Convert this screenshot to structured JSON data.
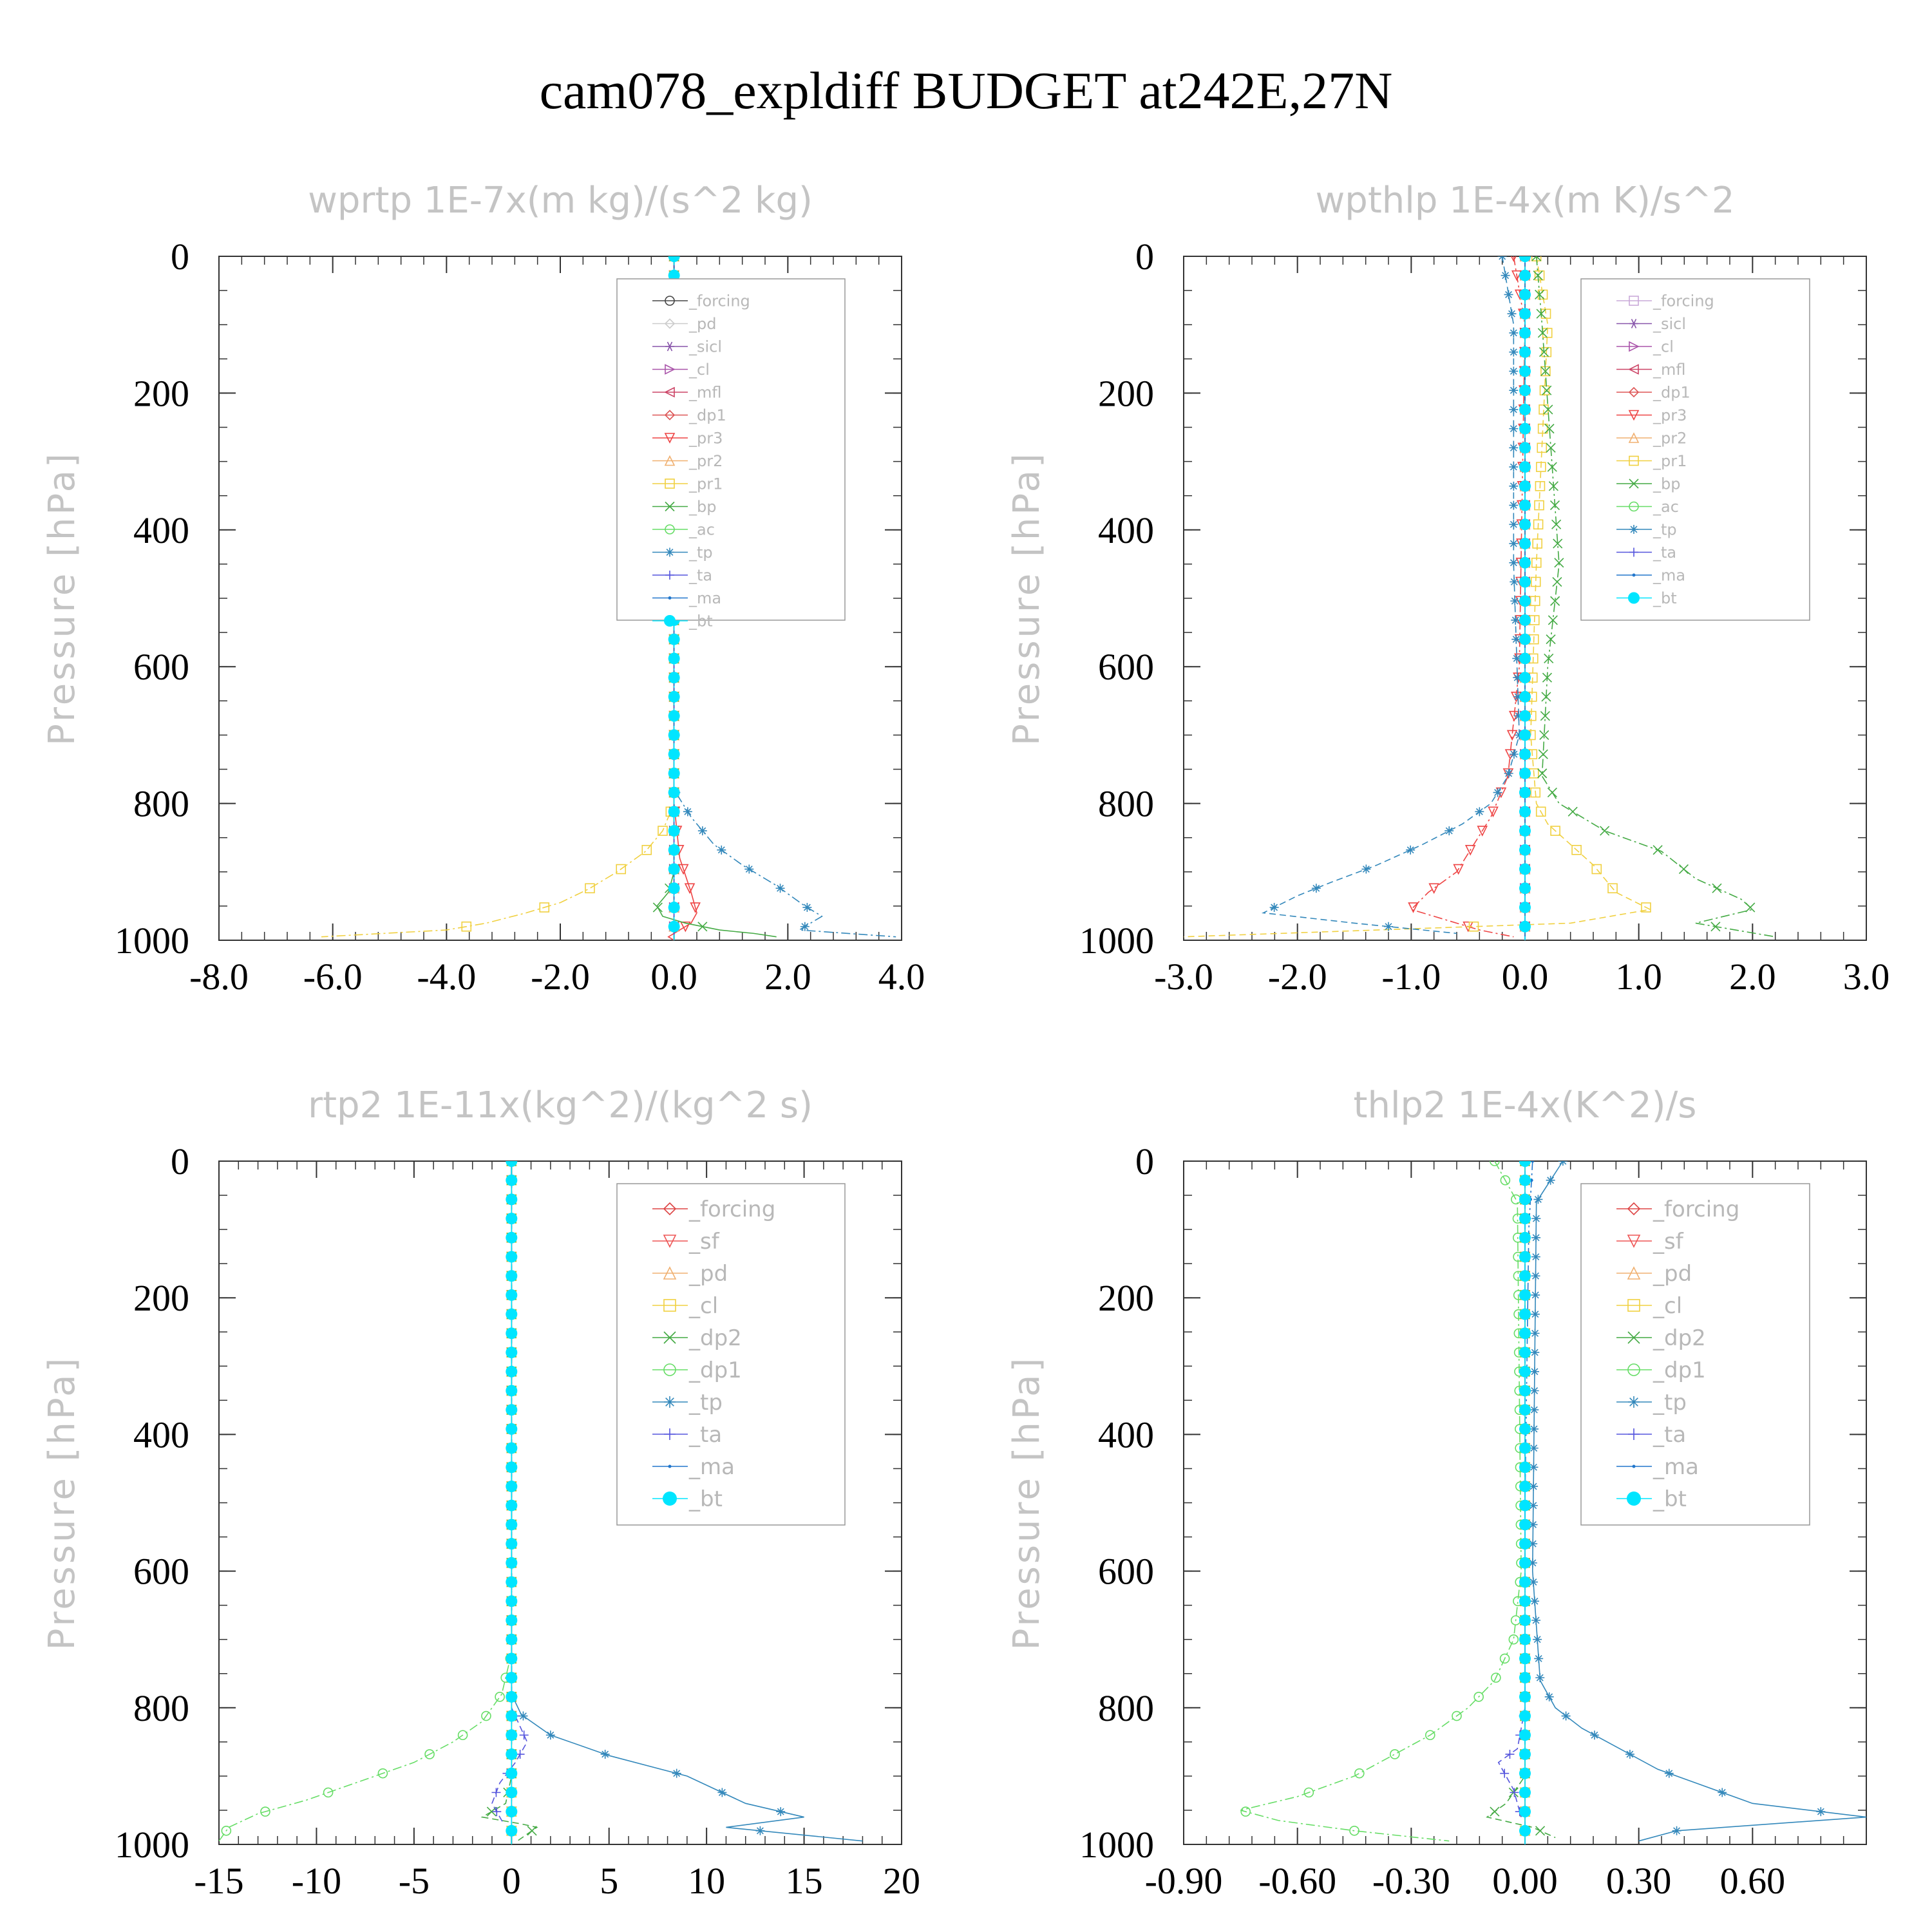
{
  "figure": {
    "title": "cam078_expldiff  BUDGET at242E,27N"
  },
  "chart_data": [
    {
      "type": "line",
      "title": "wprtp  1E-7x(m kg)/(s^2 kg)",
      "ylabel": "Pressure [hPa]",
      "xlim": [
        -8,
        4
      ],
      "ylim": [
        1000,
        0
      ],
      "xticks": [
        -8,
        -6,
        -4,
        -2,
        0,
        2,
        4
      ],
      "xtick_labels": [
        "-8.0",
        "-6.0",
        "-4.0",
        "-2.0",
        "0.0",
        "2.0",
        "4.0"
      ],
      "yticks": [
        0,
        200,
        400,
        600,
        800,
        1000
      ],
      "ytick_labels": [
        "0",
        "200",
        "400",
        "600",
        "800",
        "1000"
      ],
      "legend": "top-right",
      "series": [
        {
          "name": "_forcing",
          "color": "#444444",
          "marker": "circle",
          "x": [
            0,
            0
          ],
          "y": [
            0,
            1000
          ]
        },
        {
          "name": "_pd",
          "color": "#cccccc",
          "marker": "diamond",
          "x": [
            0,
            0
          ],
          "y": [
            0,
            1000
          ]
        },
        {
          "name": "_sicl",
          "color": "#8855aa",
          "marker": "star",
          "x": [
            0,
            0
          ],
          "y": [
            0,
            1000
          ]
        },
        {
          "name": "_cl",
          "color": "#aa55aa",
          "marker": "tri-right",
          "x": [
            0,
            0
          ],
          "y": [
            0,
            1000
          ]
        },
        {
          "name": "_mfl",
          "color": "#cc4466",
          "marker": "tri-left",
          "x": [
            0,
            0
          ],
          "y": [
            0,
            1000
          ]
        },
        {
          "name": "_dp1",
          "color": "#dd5555",
          "marker": "diamond",
          "x": [
            0,
            0
          ],
          "y": [
            0,
            1000
          ]
        },
        {
          "name": "_pr3",
          "color": "#ee4444",
          "marker": "tri-down",
          "x": [
            0,
            0,
            0.1,
            0.3,
            0.4,
            0.3,
            0.1,
            -0.1,
            0
          ],
          "y": [
            0,
            800,
            880,
            930,
            960,
            975,
            985,
            995,
            1000
          ]
        },
        {
          "name": "_pr2",
          "color": "#f0b070",
          "marker": "tri-up",
          "x": [
            0,
            0
          ],
          "y": [
            0,
            1000
          ]
        },
        {
          "name": "_pr1",
          "color": "#f0d040",
          "marker": "square",
          "x": [
            0,
            0,
            -0.2,
            -0.5,
            -1.0,
            -1.5,
            -2.0,
            -2.6,
            -3.3,
            -4.0,
            -6.2
          ],
          "y": [
            0,
            800,
            840,
            870,
            900,
            925,
            945,
            960,
            975,
            985,
            995
          ]
        },
        {
          "name": "_bp",
          "color": "#44aa44",
          "marker": "x",
          "x": [
            0,
            0,
            -0.1,
            -0.3,
            -0.2,
            0.2,
            0.8,
            1.4,
            1.8
          ],
          "y": [
            0,
            900,
            930,
            950,
            965,
            975,
            985,
            990,
            995
          ]
        },
        {
          "name": "_ac",
          "color": "#66dd66",
          "marker": "circle",
          "x": [
            0,
            0
          ],
          "y": [
            0,
            1000
          ]
        },
        {
          "name": "_tp",
          "color": "#3388bb",
          "marker": "asterisk",
          "x": [
            0,
            0,
            0.3,
            0.7,
            1.2,
            1.8,
            2.3,
            2.6,
            2.2,
            3.9
          ],
          "y": [
            0,
            780,
            820,
            860,
            890,
            920,
            950,
            965,
            985,
            995
          ]
        },
        {
          "name": "_ta",
          "color": "#5555dd",
          "marker": "plus",
          "x": [
            0,
            0
          ],
          "y": [
            0,
            1000
          ]
        },
        {
          "name": "_ma",
          "color": "#2277cc",
          "marker": "dot",
          "x": [
            0,
            0
          ],
          "y": [
            0,
            1000
          ]
        },
        {
          "name": "_bt",
          "color": "#00e5ff",
          "marker": "bigdot",
          "x": [
            0,
            0
          ],
          "y": [
            0,
            1000
          ]
        }
      ]
    },
    {
      "type": "line",
      "title": "wpthlp  1E-4x(m K)/s^2",
      "ylabel": "Pressure [hPa]",
      "xlim": [
        -3,
        3
      ],
      "ylim": [
        1000,
        0
      ],
      "xticks": [
        -3,
        -2,
        -1,
        0,
        1,
        2,
        3
      ],
      "xtick_labels": [
        "-3.0",
        "-2.0",
        "-1.0",
        "0.0",
        "1.0",
        "2.0",
        "3.0"
      ],
      "yticks": [
        0,
        200,
        400,
        600,
        800,
        1000
      ],
      "ytick_labels": [
        "0",
        "200",
        "400",
        "600",
        "800",
        "1000"
      ],
      "legend": "top-right",
      "series": [
        {
          "name": "_forcing",
          "color": "#c9a8d8",
          "marker": "square",
          "x": [
            0,
            0
          ],
          "y": [
            0,
            1000
          ]
        },
        {
          "name": "_sicl",
          "color": "#8855aa",
          "marker": "star",
          "x": [
            0,
            0
          ],
          "y": [
            0,
            1000
          ]
        },
        {
          "name": "_cl",
          "color": "#aa55aa",
          "marker": "tri-right",
          "x": [
            0,
            0
          ],
          "y": [
            0,
            1000
          ]
        },
        {
          "name": "_mfl",
          "color": "#cc4466",
          "marker": "tri-left",
          "x": [
            0,
            0
          ],
          "y": [
            0,
            1000
          ]
        },
        {
          "name": "_dp1",
          "color": "#dd5555",
          "marker": "diamond",
          "x": [
            0,
            0
          ],
          "y": [
            0,
            1000
          ]
        },
        {
          "name": "_pr3",
          "color": "#ee4444",
          "marker": "tri-down",
          "x": [
            -0.1,
            0,
            -0.05,
            -0.15,
            -0.3,
            -0.45,
            -0.6,
            -0.85,
            -1.0,
            -0.7,
            -0.4,
            -0.1
          ],
          "y": [
            0,
            100,
            600,
            760,
            820,
            860,
            900,
            930,
            955,
            970,
            985,
            995
          ]
        },
        {
          "name": "_pr2",
          "color": "#f0b070",
          "marker": "tri-up",
          "x": [
            0,
            0
          ],
          "y": [
            0,
            1000
          ]
        },
        {
          "name": "_pr1",
          "color": "#f0d040",
          "marker": "square",
          "x": [
            0.1,
            0.2,
            0.1,
            0.05,
            0.1,
            0.2,
            0.4,
            0.6,
            0.7,
            0.8,
            1.1,
            0.4,
            -3.0
          ],
          "y": [
            0,
            100,
            450,
            700,
            800,
            830,
            860,
            890,
            910,
            930,
            955,
            975,
            995
          ]
        },
        {
          "name": "_bp",
          "color": "#44aa44",
          "marker": "x",
          "x": [
            0.1,
            0.15,
            0.3,
            0.2,
            0.15,
            0.3,
            0.7,
            1.2,
            1.5,
            1.9,
            2.0,
            1.5,
            2.2
          ],
          "y": [
            0,
            100,
            450,
            600,
            760,
            800,
            840,
            870,
            910,
            940,
            955,
            975,
            995
          ]
        },
        {
          "name": "_ac",
          "color": "#66dd66",
          "marker": "circle",
          "x": [
            0,
            0
          ],
          "y": [
            0,
            1000
          ]
        },
        {
          "name": "_tp",
          "color": "#3388bb",
          "marker": "asterisk",
          "x": [
            -0.2,
            -0.1,
            -0.1,
            -0.05,
            -0.15,
            -0.3,
            -0.55,
            -0.9,
            -1.3,
            -1.7,
            -2.0,
            -2.3,
            -1.5,
            -0.6
          ],
          "y": [
            0,
            100,
            450,
            700,
            760,
            800,
            830,
            860,
            890,
            915,
            935,
            960,
            975,
            990
          ]
        },
        {
          "name": "_ta",
          "color": "#5555dd",
          "marker": "plus",
          "x": [
            0,
            0
          ],
          "y": [
            0,
            1000
          ]
        },
        {
          "name": "_ma",
          "color": "#2277cc",
          "marker": "dot",
          "x": [
            0,
            0
          ],
          "y": [
            0,
            1000
          ]
        },
        {
          "name": "_bt",
          "color": "#00e5ff",
          "marker": "bigdot",
          "x": [
            0,
            0
          ],
          "y": [
            0,
            1000
          ]
        }
      ]
    },
    {
      "type": "line",
      "title": "rtp2  1E-11x(kg^2)/(kg^2 s)",
      "ylabel": "Pressure [hPa]",
      "xlim": [
        -15,
        20
      ],
      "ylim": [
        1000,
        0
      ],
      "xticks": [
        -15,
        -10,
        -5,
        0,
        5,
        10,
        15,
        20
      ],
      "xtick_labels": [
        "-15",
        "-10",
        "-5",
        "0",
        "5",
        "10",
        "15",
        "20"
      ],
      "yticks": [
        0,
        200,
        400,
        600,
        800,
        1000
      ],
      "ytick_labels": [
        "0",
        "200",
        "400",
        "600",
        "800",
        "1000"
      ],
      "legend": "top-right",
      "series": [
        {
          "name": "_forcing",
          "color": "#dd4444",
          "marker": "diamond",
          "x": [
            0,
            0
          ],
          "y": [
            0,
            1000
          ]
        },
        {
          "name": "_sf",
          "color": "#ee5555",
          "marker": "tri-down",
          "x": [
            0,
            0
          ],
          "y": [
            0,
            1000
          ]
        },
        {
          "name": "_pd",
          "color": "#f0b070",
          "marker": "tri-up",
          "x": [
            0,
            0
          ],
          "y": [
            0,
            1000
          ]
        },
        {
          "name": "_cl",
          "color": "#f0d040",
          "marker": "square",
          "x": [
            0,
            0
          ],
          "y": [
            0,
            1000
          ]
        },
        {
          "name": "_dp2",
          "color": "#44aa44",
          "marker": "x",
          "x": [
            0,
            0,
            -0.3,
            -1.5,
            0.5,
            1.3,
            0.3
          ],
          "y": [
            0,
            900,
            940,
            960,
            970,
            975,
            995
          ]
        },
        {
          "name": "_dp1",
          "color": "#66dd66",
          "marker": "circle",
          "x": [
            0,
            0,
            -0.5,
            -1.5,
            -3.0,
            -5.0,
            -8.0,
            -10.5,
            -13.0,
            -14.5,
            -15.0
          ],
          "y": [
            0,
            720,
            780,
            820,
            850,
            880,
            910,
            935,
            955,
            975,
            995
          ]
        },
        {
          "name": "_tp",
          "color": "#3388bb",
          "marker": "asterisk",
          "x": [
            0,
            0,
            0.5,
            2.0,
            5.0,
            9.0,
            12.0,
            15.0,
            11.0,
            18.0
          ],
          "y": [
            0,
            780,
            810,
            840,
            870,
            900,
            940,
            960,
            975,
            995
          ]
        },
        {
          "name": "_ta",
          "color": "#5555dd",
          "marker": "plus",
          "x": [
            0,
            0,
            0.8,
            0.2,
            -0.6,
            -1.0,
            -0.4
          ],
          "y": [
            0,
            800,
            850,
            880,
            910,
            940,
            970
          ]
        },
        {
          "name": "_ma",
          "color": "#2277cc",
          "marker": "dot",
          "x": [
            0,
            0
          ],
          "y": [
            0,
            1000
          ]
        },
        {
          "name": "_bt",
          "color": "#00e5ff",
          "marker": "bigdot",
          "x": [
            0,
            0
          ],
          "y": [
            0,
            1000
          ]
        }
      ]
    },
    {
      "type": "line",
      "title": "thlp2  1E-4x(K^2)/s",
      "ylabel": "Pressure [hPa]",
      "xlim": [
        -0.9,
        0.9
      ],
      "ylim": [
        1000,
        0
      ],
      "xticks": [
        -0.9,
        -0.6,
        -0.3,
        0,
        0.3,
        0.6
      ],
      "xtick_labels": [
        "-0.90",
        "-0.60",
        "-0.30",
        "0.00",
        "0.30",
        "0.60"
      ],
      "yticks": [
        0,
        200,
        400,
        600,
        800,
        1000
      ],
      "ytick_labels": [
        "0",
        "200",
        "400",
        "600",
        "800",
        "1000"
      ],
      "legend": "top-right",
      "series": [
        {
          "name": "_forcing",
          "color": "#dd4444",
          "marker": "diamond",
          "x": [
            0,
            0
          ],
          "y": [
            0,
            1000
          ]
        },
        {
          "name": "_sf",
          "color": "#ee5555",
          "marker": "tri-down",
          "x": [
            0,
            0
          ],
          "y": [
            0,
            1000
          ]
        },
        {
          "name": "_pd",
          "color": "#f0b070",
          "marker": "tri-up",
          "x": [
            0,
            0
          ],
          "y": [
            0,
            1000
          ]
        },
        {
          "name": "_cl",
          "color": "#f0d040",
          "marker": "square",
          "x": [
            0,
            0
          ],
          "y": [
            0,
            1000
          ]
        },
        {
          "name": "_dp2",
          "color": "#44aa44",
          "marker": "x",
          "x": [
            0,
            0,
            -0.05,
            -0.1,
            0.02,
            0.08
          ],
          "y": [
            0,
            900,
            940,
            960,
            975,
            990
          ]
        },
        {
          "name": "_dp1",
          "color": "#66dd66",
          "marker": "circle",
          "x": [
            -0.08,
            -0.02,
            -0.01,
            -0.03,
            -0.08,
            -0.15,
            -0.25,
            -0.35,
            -0.45,
            -0.6,
            -0.75,
            -0.65,
            -0.45,
            -0.2
          ],
          "y": [
            0,
            60,
            600,
            700,
            760,
            800,
            840,
            870,
            900,
            930,
            950,
            965,
            980,
            995
          ]
        },
        {
          "name": "_tp",
          "color": "#3388bb",
          "marker": "asterisk",
          "x": [
            0.1,
            0.03,
            0.02,
            0.04,
            0.08,
            0.15,
            0.25,
            0.35,
            0.45,
            0.6,
            0.9,
            0.4,
            0.3
          ],
          "y": [
            0,
            60,
            600,
            760,
            800,
            830,
            860,
            890,
            910,
            940,
            960,
            980,
            995
          ]
        },
        {
          "name": "_ta",
          "color": "#5555dd",
          "marker": "plus",
          "x": [
            0,
            0,
            -0.02,
            -0.07,
            -0.03,
            -0.01
          ],
          "y": [
            0,
            800,
            860,
            880,
            920,
            960
          ]
        },
        {
          "name": "_ma",
          "color": "#2277cc",
          "marker": "dot",
          "x": [
            0.02,
            0.01,
            0,
            0
          ],
          "y": [
            0,
            100,
            500,
            1000
          ]
        },
        {
          "name": "_bt",
          "color": "#00e5ff",
          "marker": "bigdot",
          "x": [
            0,
            0
          ],
          "y": [
            0,
            1000
          ]
        }
      ]
    }
  ]
}
